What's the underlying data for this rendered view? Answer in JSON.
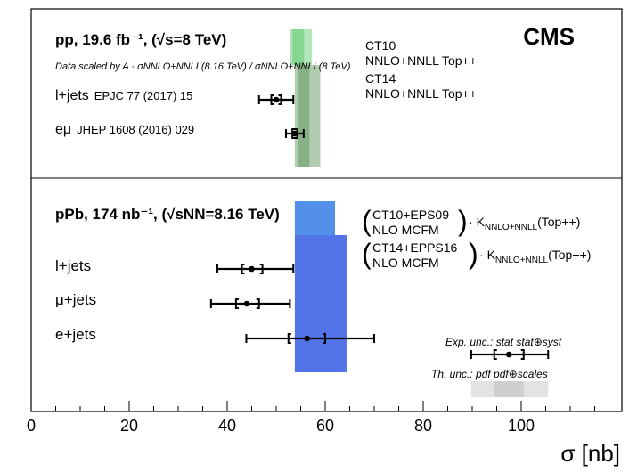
{
  "chart_data": {
    "type": "scatter",
    "title": "CMS",
    "xlabel": "σ [nb]",
    "ylabel": "",
    "xlim": [
      0,
      115
    ],
    "xticks": [
      0,
      20,
      40,
      60,
      80,
      100
    ],
    "grid": false,
    "pp_section": {
      "header": "pp, 19.6 fb⁻¹, (√s=8 TeV)",
      "scaling_note": "Data scaled by A · σNNLO+NNLL(8.16 TeV) / σNNLO+NNLL(8 TeV)",
      "theory_bands": [
        {
          "name": "CT10 NNLO+NNLL Top++",
          "label_line1": "CT10",
          "label_line2": "NNLO+NNLL Top++",
          "color": "#7fd38a",
          "inner_low": 53.3,
          "inner_high": 55.7,
          "outer_low": 52.8,
          "outer_high": 57.3
        },
        {
          "name": "CT14 NNLO+NNLL Top++",
          "label_line1": "CT14",
          "label_line2": "NNLO+NNLL Top++",
          "color": "#7faa7f",
          "inner_low": 54.5,
          "inner_high": 56.8,
          "outer_low": 53.8,
          "outer_high": 59.0
        }
      ],
      "measurements": [
        {
          "label": "l+jets",
          "ref": "EPJC 77 (2017) 15",
          "value": 50.0,
          "stat_low": 49.0,
          "stat_high": 51.0,
          "tot_low": 46.5,
          "tot_high": 53.5
        },
        {
          "label": "eμ",
          "ref": "JHEP 1608 (2016) 029",
          "value": 53.8,
          "stat_low": 53.3,
          "stat_high": 54.3,
          "tot_low": 52.0,
          "tot_high": 55.6
        }
      ]
    },
    "pPb_section": {
      "header": "pPb, 174 nb⁻¹, (√sNN=8.16 TeV)",
      "theory_bands": [
        {
          "name": "CT10+EPS09 NLO MCFM · K NNLO+NNLL (Top++)",
          "label_line1": "CT10+EPS09",
          "label_line2": "NLO MCFM",
          "k_factor": "K",
          "k_sub": "NNLO+NNLL",
          "k_suffix": "(Top++)",
          "color": "#4a8ae8",
          "low": 53.8,
          "high": 62.0
        },
        {
          "name": "CT14+EPPS16 NLO MCFM · K NNLO+NNLL (Top++)",
          "label_line1": "CT14+EPPS16",
          "label_line2": "NLO MCFM",
          "k_factor": "K",
          "k_sub": "NNLO+NNLL",
          "k_suffix": "(Top++)",
          "color": "#4a6de8",
          "low": 53.8,
          "high": 64.5
        }
      ],
      "measurements": [
        {
          "label": "l+jets",
          "value": 45.0,
          "stat_low": 43.0,
          "stat_high": 47.2,
          "tot_low": 38.0,
          "tot_high": 53.5
        },
        {
          "label": "μ+jets",
          "value": 44.0,
          "stat_low": 41.8,
          "stat_high": 46.5,
          "tot_low": 36.7,
          "tot_high": 52.8
        },
        {
          "label": "e+jets",
          "value": 56.3,
          "stat_low": 52.5,
          "stat_high": 60.0,
          "tot_low": 43.9,
          "tot_high": 70.0
        }
      ]
    },
    "legend": {
      "placement": "bottom-right",
      "exp_label": "Exp. unc.: stat  stat⊕syst",
      "th_label": "Th. unc.: pdf  pdf⊕scales",
      "example_value": 97.5,
      "example_stat": [
        94.5,
        100.5
      ],
      "example_tot": [
        89.8,
        105.5
      ],
      "example_band_inner": [
        94.5,
        100.5
      ],
      "example_band_outer": [
        89.8,
        105.5
      ]
    }
  }
}
